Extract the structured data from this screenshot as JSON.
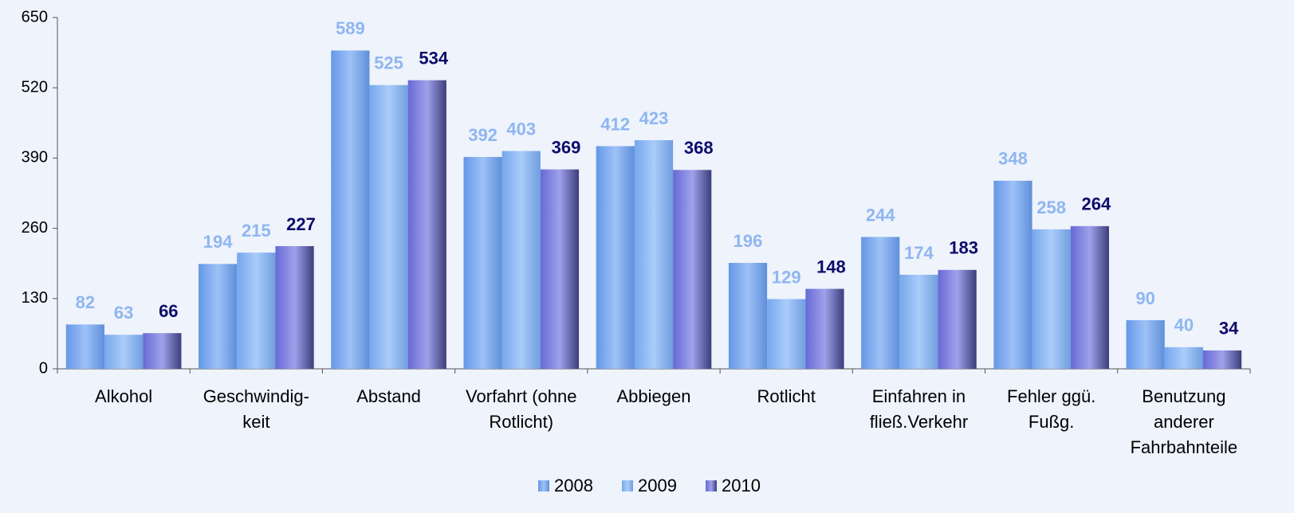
{
  "chart_data": {
    "type": "bar",
    "categories": [
      "Alkohol",
      [
        "Geschwindig-",
        "keit"
      ],
      "Abstand",
      [
        "Vorfahrt (ohne",
        "Rotlicht)"
      ],
      "Abbiegen",
      "Rotlicht",
      [
        "Einfahren in",
        "fließ.Verkehr"
      ],
      [
        "Fehler ggü.",
        "Fußg."
      ],
      [
        "Benutzung",
        "anderer",
        "Fahrbahnteile"
      ]
    ],
    "series": [
      {
        "name": "2008",
        "color": "#6a9ff2",
        "label_color": "#8fb6f0",
        "values": [
          82,
          194,
          589,
          392,
          412,
          196,
          244,
          348,
          90
        ]
      },
      {
        "name": "2009",
        "color": "#7cb0f8",
        "label_color": "#8fb6f0",
        "values": [
          63,
          215,
          525,
          403,
          423,
          129,
          174,
          258,
          40
        ]
      },
      {
        "name": "2010",
        "color": "#6c6ee0",
        "label_color": "#0c0c6a",
        "values": [
          66,
          227,
          534,
          369,
          368,
          148,
          183,
          264,
          34
        ]
      }
    ],
    "ylim": [
      0,
      650
    ],
    "yticks": [
      0,
      130,
      260,
      390,
      520,
      650
    ],
    "grid": false,
    "legend": "bottom"
  }
}
